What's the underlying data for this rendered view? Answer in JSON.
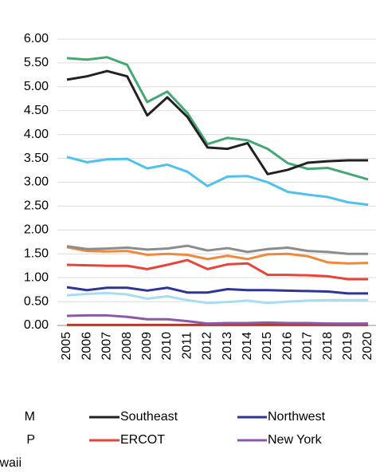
{
  "chart_data": {
    "type": "line",
    "categories": [
      "2005",
      "2006",
      "2007",
      "2008",
      "2009",
      "2010",
      "2011",
      "2012",
      "2013",
      "2014",
      "2015",
      "2016",
      "2017",
      "2018",
      "2019",
      "2020"
    ],
    "ylim": [
      0,
      6
    ],
    "yticks": [
      {
        "value": 0,
        "label": "0.00"
      },
      {
        "value": 0.5,
        "label": "0.50"
      },
      {
        "value": 1,
        "label": "1.00"
      },
      {
        "value": 1.5,
        "label": "1.50"
      },
      {
        "value": 2,
        "label": "2.00"
      },
      {
        "value": 2.5,
        "label": "2.50"
      },
      {
        "value": 3,
        "label": "3.00"
      },
      {
        "value": 3.5,
        "label": "3.50"
      },
      {
        "value": 4,
        "label": "4.00"
      },
      {
        "value": 4.5,
        "label": "4.50"
      },
      {
        "value": 5,
        "label": "5.00"
      },
      {
        "value": 5.5,
        "label": "5.50"
      },
      {
        "value": 6,
        "label": "6.00"
      }
    ],
    "grid": true,
    "series": [
      {
        "name": "M",
        "color": "#45a874",
        "values": [
          5.6,
          5.57,
          5.62,
          5.46,
          4.68,
          4.9,
          4.45,
          3.8,
          3.93,
          3.88,
          3.7,
          3.4,
          3.28,
          3.3,
          3.18,
          3.06
        ]
      },
      {
        "name": "P",
        "color": "#4ec2ea",
        "values": [
          3.53,
          3.42,
          3.48,
          3.49,
          3.29,
          3.37,
          3.22,
          2.92,
          3.12,
          3.13,
          3.0,
          2.8,
          2.74,
          2.69,
          2.58,
          2.53
        ]
      },
      {
        "name": "waii",
        "color": "#8c8c8c",
        "values": [
          1.66,
          1.6,
          1.61,
          1.63,
          1.59,
          1.61,
          1.67,
          1.57,
          1.62,
          1.54,
          1.6,
          1.63,
          1.56,
          1.54,
          1.5,
          1.5
        ]
      },
      {
        "name": "Southeast",
        "color": "#222222",
        "values": [
          5.15,
          5.22,
          5.33,
          5.22,
          4.4,
          4.78,
          4.37,
          3.73,
          3.7,
          3.82,
          3.17,
          3.26,
          3.41,
          3.44,
          3.46,
          3.46
        ]
      },
      {
        "name": "ERCOT",
        "color": "#e8443a",
        "values": [
          1.27,
          1.26,
          1.25,
          1.25,
          1.18,
          1.27,
          1.37,
          1.18,
          1.28,
          1.3,
          1.06,
          1.06,
          1.05,
          1.03,
          0.97,
          0.97
        ]
      },
      {
        "name": "Northwest",
        "color": "#2e3592",
        "values": [
          0.8,
          0.74,
          0.79,
          0.79,
          0.73,
          0.79,
          0.69,
          0.69,
          0.76,
          0.74,
          0.74,
          0.73,
          0.72,
          0.71,
          0.67,
          0.67
        ]
      },
      {
        "name": "New York",
        "color": "#8a5aa8",
        "values": [
          0.2,
          0.21,
          0.21,
          0.18,
          0.13,
          0.13,
          0.09,
          0.04,
          0.05,
          0.05,
          0.06,
          0.05,
          0.05,
          0.04,
          0.04,
          0.04
        ]
      },
      {
        "color": "#f0883a",
        "values": [
          1.64,
          1.56,
          1.55,
          1.56,
          1.48,
          1.5,
          1.48,
          1.39,
          1.46,
          1.39,
          1.49,
          1.5,
          1.45,
          1.32,
          1.3,
          1.31
        ]
      },
      {
        "color": "#a8dcf0",
        "values": [
          0.63,
          0.66,
          0.68,
          0.65,
          0.56,
          0.61,
          0.53,
          0.47,
          0.49,
          0.52,
          0.47,
          0.5,
          0.52,
          0.53,
          0.53,
          0.53
        ]
      },
      {
        "color": "#b03a2e",
        "values": [
          0.01,
          0.01,
          0.01,
          0.01,
          0.01,
          0.01,
          0.01,
          0.01,
          0.01,
          0.01,
          0.01,
          0.01,
          0.01,
          0.01,
          0.01,
          0.01
        ]
      }
    ]
  }
}
